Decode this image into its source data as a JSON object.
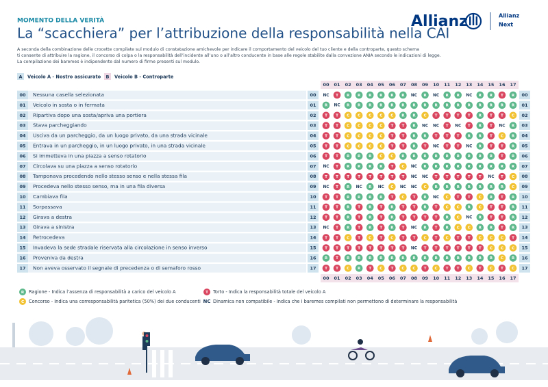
{
  "header": {
    "kicker": "MOMENTO DELLA VERITÀ",
    "title": "La “scacchiera” per l’attribuzione della responsabilità nella CAI",
    "brand": "Allianz",
    "sub": [
      "Allianz",
      "Next"
    ]
  },
  "intro": [
    "A seconda della combinazione delle crocette compilate sul modulo di constatazione amichevole per indicare il comportamento del veicolo del tuo cliente e della controparte, questo schema",
    "ti consente di attribuire la ragione, il concorso di colpa o la responsabilità dell’incidente all’uno o all’altro conducente in base alle regole stabilite dalla convezione ANIA secondo le indicazioni di legge.",
    "La compilazione dei baremes è indipendente dal numero di firme presenti sul modulo."
  ],
  "vehicles": [
    {
      "badge": "A",
      "label": "Veicolo A - Nostro assicurato"
    },
    {
      "badge": "B",
      "label": "Veicolo B - Controparte"
    }
  ],
  "codes": [
    "00",
    "01",
    "02",
    "03",
    "04",
    "05",
    "06",
    "07",
    "08",
    "09",
    "10",
    "11",
    "12",
    "13",
    "14",
    "15",
    "16",
    "17"
  ],
  "rows": [
    {
      "label": "Nessuna casella selezionata",
      "cells": [
        "NC",
        "T",
        "R",
        "R",
        "R",
        "R",
        "R",
        "R",
        "NC",
        "R",
        "NC",
        "R",
        "R",
        "NC",
        "R",
        "R",
        "T",
        "R"
      ]
    },
    {
      "label": "Veicolo in sosta o in fermata",
      "cells": [
        "R",
        "NC",
        "R",
        "R",
        "R",
        "R",
        "R",
        "R",
        "R",
        "R",
        "R",
        "R",
        "R",
        "R",
        "R",
        "R",
        "R",
        "R"
      ]
    },
    {
      "label": "Ripartiva dopo una sosta/apriva una portiera",
      "cells": [
        "T",
        "T",
        "C",
        "C",
        "C",
        "C",
        "C",
        "R",
        "R",
        "C",
        "T",
        "T",
        "T",
        "T",
        "R",
        "T",
        "T",
        "C"
      ]
    },
    {
      "label": "Stava parcheggiando",
      "cells": [
        "T",
        "T",
        "C",
        "C",
        "C",
        "C",
        "T",
        "T",
        "R",
        "NC",
        "NC",
        "T",
        "NC",
        "T",
        "R",
        "T",
        "NC",
        "R"
      ]
    },
    {
      "label": "Usciva da un parcheggio, da un luogo privato, da una strada vicinale",
      "cells": [
        "T",
        "T",
        "C",
        "C",
        "C",
        "C",
        "T",
        "T",
        "R",
        "R",
        "T",
        "T",
        "T",
        "R",
        "R",
        "T",
        "C",
        "R"
      ]
    },
    {
      "label": "Entrava in un parcheggio, in un luogo privato, in una strada vicinale",
      "cells": [
        "T",
        "T",
        "C",
        "C",
        "C",
        "C",
        "T",
        "T",
        "R",
        "T",
        "NC",
        "T",
        "T",
        "NC",
        "R",
        "T",
        "T",
        "R"
      ]
    },
    {
      "label": "Si immetteva in una piazza a senso rotatorio",
      "cells": [
        "T",
        "T",
        "R",
        "R",
        "R",
        "C",
        "C",
        "R",
        "R",
        "R",
        "R",
        "R",
        "R",
        "R",
        "R",
        "R",
        "T",
        "R"
      ]
    },
    {
      "label": "Circolava su una piazza a senso rotatorio",
      "cells": [
        "NC",
        "T",
        "R",
        "R",
        "R",
        "R",
        "T",
        "C",
        "NC",
        "R",
        "R",
        "R",
        "R",
        "R",
        "R",
        "R",
        "R",
        "R"
      ]
    },
    {
      "label": "Tamponava procedendo nello stesso senso e nella stessa fila",
      "cells": [
        "T",
        "T",
        "T",
        "T",
        "T",
        "T",
        "T",
        "T",
        "NC",
        "NC",
        "T",
        "T",
        "T",
        "T",
        "T",
        "NC",
        "T",
        "C"
      ]
    },
    {
      "label": "Procedeva nello stesso senso, ma in una fila diversa",
      "cells": [
        "NC",
        "T",
        "R",
        "NC",
        "R",
        "NC",
        "C",
        "NC",
        "NC",
        "C",
        "R",
        "R",
        "R",
        "R",
        "R",
        "R",
        "R",
        "C"
      ]
    },
    {
      "label": "Cambiava fila",
      "cells": [
        "T",
        "T",
        "R",
        "R",
        "R",
        "R",
        "T",
        "C",
        "T",
        "R",
        "NC",
        "C",
        "T",
        "T",
        "C",
        "R",
        "T",
        "R"
      ]
    },
    {
      "label": "Sorpassava",
      "cells": [
        "T",
        "T",
        "R",
        "T",
        "R",
        "T",
        "R",
        "T",
        "T",
        "R",
        "T",
        "C",
        "C",
        "R",
        "C",
        "T",
        "T",
        "R"
      ]
    },
    {
      "label": "Girava a destra",
      "cells": [
        "T",
        "T",
        "R",
        "T",
        "R",
        "T",
        "R",
        "T",
        "T",
        "T",
        "T",
        "R",
        "C",
        "NC",
        "R",
        "T",
        "T",
        "R"
      ]
    },
    {
      "label": "Girava a sinistra",
      "cells": [
        "NC",
        "T",
        "R",
        "T",
        "R",
        "T",
        "R",
        "T",
        "NC",
        "R",
        "T",
        "R",
        "C",
        "C",
        "R",
        "R",
        "T",
        "R"
      ]
    },
    {
      "label": "Retrocedeva",
      "cells": [
        "T",
        "T",
        "C",
        "T",
        "C",
        "T",
        "C",
        "T",
        "T",
        "C",
        "T",
        "C",
        "T",
        "T",
        "C",
        "C",
        "C",
        "T"
      ]
    },
    {
      "label": "Invadeva la sede stradale riservata alla circolazione in senso inverso",
      "cells": [
        "T",
        "T",
        "T",
        "T",
        "T",
        "T",
        "T",
        "T",
        "NC",
        "T",
        "T",
        "T",
        "T",
        "T",
        "T",
        "C",
        "C",
        "C"
      ]
    },
    {
      "label": "Proveniva da destra",
      "cells": [
        "R",
        "T",
        "R",
        "R",
        "R",
        "R",
        "R",
        "R",
        "R",
        "R",
        "R",
        "R",
        "R",
        "R",
        "R",
        "R",
        "C",
        "R"
      ]
    },
    {
      "label": "Non aveva osservato il segnale di precedenza o di semaforo rosso",
      "cells": [
        "T",
        "T",
        "C",
        "R",
        "T",
        "C",
        "T",
        "C",
        "C",
        "T",
        "C",
        "T",
        "T",
        "C",
        "T",
        "C",
        "T",
        "C"
      ]
    }
  ],
  "legend": [
    {
      "symbol": "R",
      "text": "Ragione - Indica l’assenza di responsabilità a carico del veicolo A"
    },
    {
      "symbol": "T",
      "text": "Torto - Indica la responsabilità totale del veicolo A"
    },
    {
      "symbol": "C",
      "text": "Concorso - Indica una corresponsabilità paritetica (50%) dei due conducenti"
    },
    {
      "symbol": "NC",
      "text": "Dinamica non compatibile - Indica che i baremes compilati non permettono di determinare la responsabilità"
    }
  ]
}
